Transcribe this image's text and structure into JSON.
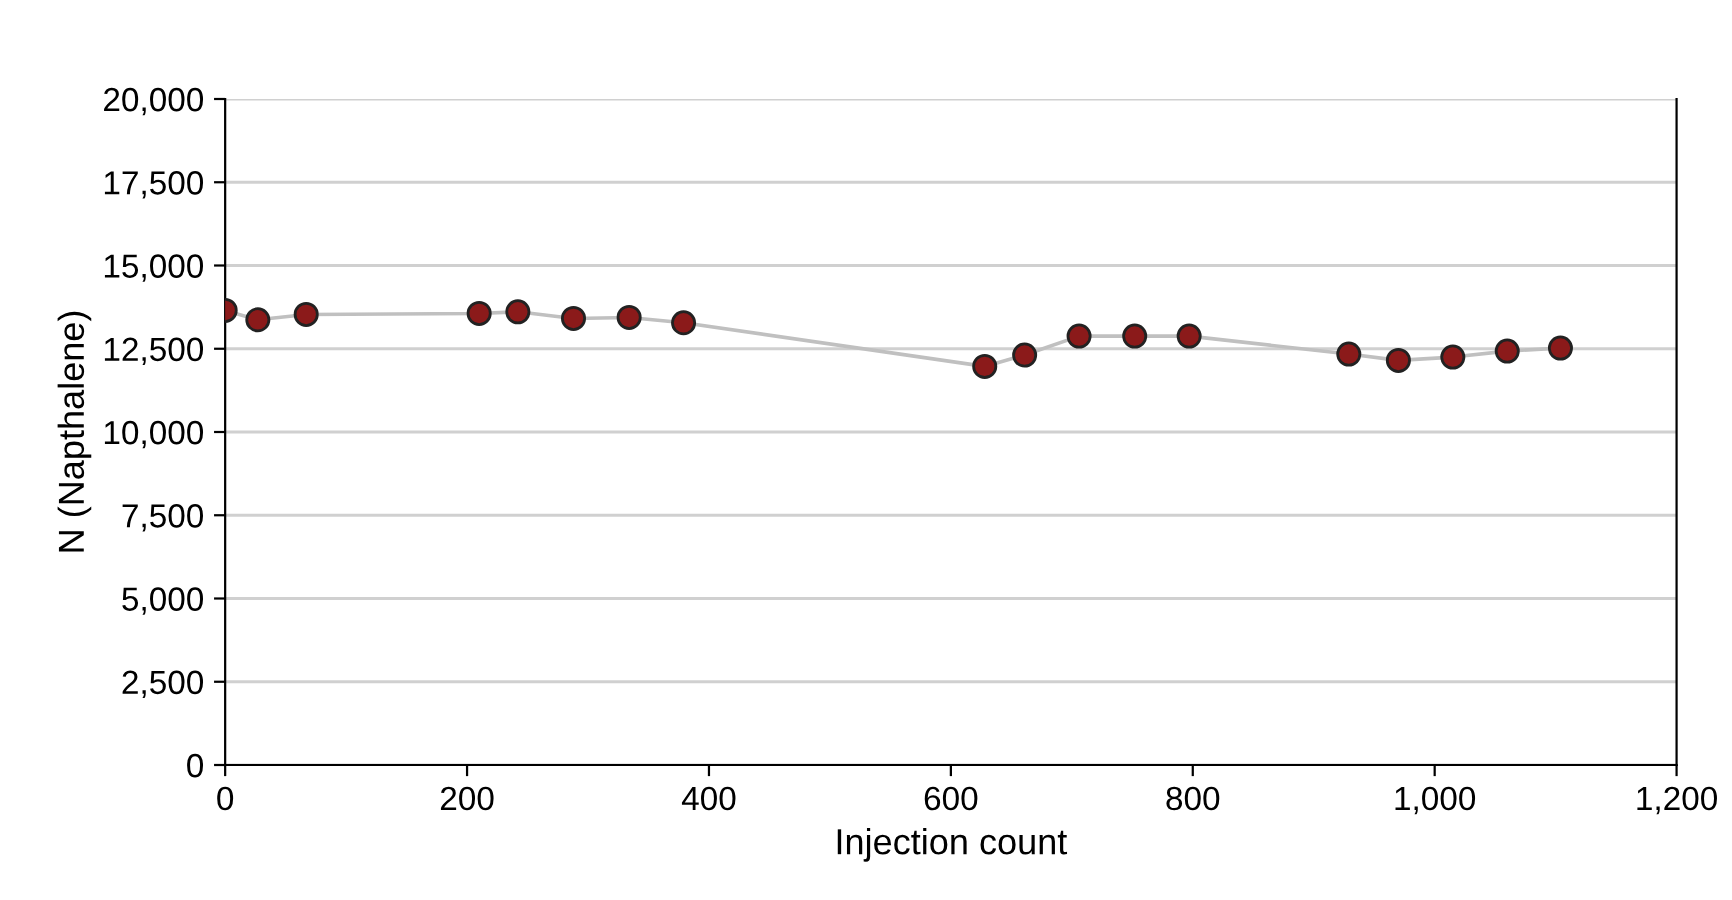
{
  "chart_data": {
    "type": "line",
    "xlabel": "Injection count",
    "ylabel": "N (Napthalene)",
    "series": [
      {
        "color": "#8b1a1a",
        "x": [
          0,
          27,
          67,
          210,
          242,
          288,
          334,
          379,
          628,
          661,
          706,
          752,
          797,
          929,
          970,
          1015,
          1060,
          1104
        ],
        "values": [
          13650,
          13370,
          13530,
          13560,
          13610,
          13410,
          13440,
          13280,
          11970,
          12310,
          12880,
          12880,
          12880,
          12340,
          12150,
          12250,
          12430,
          12520
        ]
      }
    ],
    "marker": "circle",
    "line_style": "solid",
    "xlim": [
      0,
      1200
    ],
    "xticks": [
      0,
      {
        "value": 200,
        "label": "200"
      },
      {
        "value": 400,
        "label": "400"
      },
      {
        "value": 600,
        "label": "600"
      },
      {
        "value": 800,
        "label": "800"
      },
      {
        "value": 1000,
        "label": "1,000"
      },
      {
        "value": 1200,
        "label": "1,200"
      }
    ],
    "ylim": [
      0,
      20000
    ],
    "yticks": [
      0,
      {
        "value": 2500,
        "label": "2,500"
      },
      {
        "value": 5000,
        "label": "5,000"
      },
      {
        "value": 7500,
        "label": "7,500"
      },
      {
        "value": 10000,
        "label": "10,000"
      },
      {
        "value": 12500,
        "label": "12,500"
      },
      {
        "value": 15000,
        "label": "15,000"
      },
      {
        "value": 17500,
        "label": "17,500"
      },
      {
        "value": 20000,
        "label": "20,000"
      }
    ],
    "grid": "y",
    "legend": false
  }
}
